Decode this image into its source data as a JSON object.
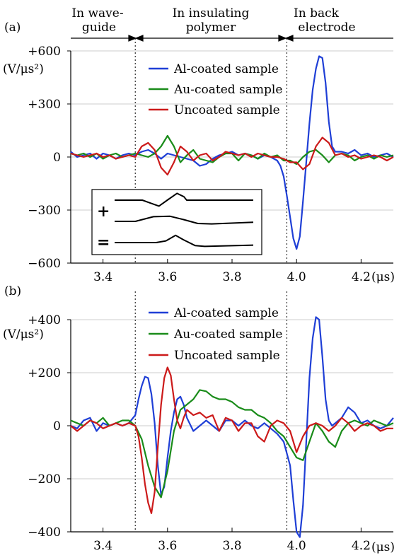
{
  "header": {
    "regions": [
      "In wave-",
      "guide",
      "In insulating",
      "polymer",
      "In back",
      "electrode"
    ]
  },
  "chart_data": [
    {
      "type": "line",
      "panel_label": "(a)",
      "ylabel_line1": "(V/μs²)",
      "xlim": [
        3.3,
        4.3
      ],
      "ylim": [
        -600,
        600
      ],
      "x_ticks": [
        3.4,
        3.6,
        3.8,
        4.0,
        4.2
      ],
      "x_tick_labels": [
        "3.4",
        "3.6",
        "3.8",
        "4.0",
        "4.2"
      ],
      "x_unit": "(μs)",
      "y_ticks": [
        600,
        300,
        0,
        -300,
        -600
      ],
      "y_tick_labels": [
        "+600",
        "+300",
        "0",
        "−300",
        "−600"
      ],
      "grid": true,
      "legend_position": "top-center",
      "markers": [
        3.5,
        3.97
      ],
      "series": [
        {
          "name": "Al-coated sample",
          "color": "#1f3fd6",
          "x": [
            3.3,
            3.32,
            3.34,
            3.36,
            3.38,
            3.4,
            3.42,
            3.44,
            3.46,
            3.48,
            3.5,
            3.52,
            3.54,
            3.56,
            3.58,
            3.6,
            3.62,
            3.64,
            3.66,
            3.68,
            3.7,
            3.72,
            3.74,
            3.76,
            3.78,
            3.8,
            3.82,
            3.84,
            3.86,
            3.88,
            3.9,
            3.92,
            3.94,
            3.95,
            3.96,
            3.97,
            3.98,
            3.99,
            4.0,
            4.01,
            4.02,
            4.03,
            4.04,
            4.05,
            4.06,
            4.07,
            4.08,
            4.09,
            4.1,
            4.11,
            4.12,
            4.14,
            4.16,
            4.18,
            4.2,
            4.22,
            4.24,
            4.26,
            4.28,
            4.3
          ],
          "y": [
            30,
            0,
            10,
            20,
            -10,
            20,
            10,
            -10,
            10,
            20,
            10,
            30,
            40,
            20,
            -10,
            20,
            10,
            0,
            -10,
            -20,
            -50,
            -40,
            -10,
            10,
            20,
            30,
            10,
            20,
            10,
            -10,
            10,
            0,
            -20,
            -50,
            -110,
            -220,
            -340,
            -460,
            -520,
            -450,
            -250,
            -30,
            190,
            380,
            500,
            570,
            560,
            420,
            200,
            60,
            30,
            30,
            20,
            40,
            10,
            20,
            0,
            10,
            20,
            0
          ]
        },
        {
          "name": "Au-coated sample",
          "color": "#1a8c1a",
          "x": [
            3.3,
            3.32,
            3.34,
            3.36,
            3.38,
            3.4,
            3.42,
            3.44,
            3.46,
            3.48,
            3.5,
            3.52,
            3.54,
            3.56,
            3.58,
            3.6,
            3.62,
            3.64,
            3.66,
            3.68,
            3.7,
            3.72,
            3.74,
            3.76,
            3.78,
            3.8,
            3.82,
            3.84,
            3.86,
            3.88,
            3.9,
            3.92,
            3.94,
            3.96,
            3.98,
            4.0,
            4.02,
            4.04,
            4.06,
            4.08,
            4.1,
            4.12,
            4.14,
            4.16,
            4.18,
            4.2,
            4.22,
            4.24,
            4.26,
            4.28,
            4.3
          ],
          "y": [
            20,
            10,
            20,
            0,
            20,
            -10,
            10,
            20,
            0,
            10,
            20,
            10,
            0,
            20,
            60,
            120,
            60,
            -30,
            10,
            40,
            -10,
            -20,
            -30,
            0,
            20,
            20,
            -20,
            20,
            10,
            -10,
            20,
            0,
            10,
            -20,
            -20,
            -40,
            0,
            30,
            40,
            10,
            -30,
            10,
            20,
            10,
            -20,
            0,
            10,
            -10,
            10,
            0,
            10
          ]
        },
        {
          "name": "Uncoated sample",
          "color": "#cc1a1a",
          "x": [
            3.3,
            3.32,
            3.34,
            3.36,
            3.38,
            3.4,
            3.42,
            3.44,
            3.46,
            3.48,
            3.5,
            3.52,
            3.54,
            3.56,
            3.58,
            3.6,
            3.62,
            3.64,
            3.66,
            3.68,
            3.7,
            3.72,
            3.74,
            3.76,
            3.78,
            3.8,
            3.82,
            3.84,
            3.86,
            3.88,
            3.9,
            3.92,
            3.94,
            3.96,
            3.98,
            4.0,
            4.02,
            4.04,
            4.06,
            4.08,
            4.1,
            4.12,
            4.14,
            4.16,
            4.18,
            4.2,
            4.22,
            4.24,
            4.26,
            4.28,
            4.3
          ],
          "y": [
            20,
            10,
            0,
            10,
            20,
            0,
            10,
            -10,
            0,
            10,
            0,
            60,
            80,
            40,
            -60,
            -100,
            -30,
            60,
            30,
            -20,
            10,
            20,
            -20,
            0,
            30,
            20,
            10,
            20,
            0,
            20,
            10,
            0,
            0,
            -10,
            -30,
            -30,
            -70,
            -40,
            60,
            110,
            80,
            10,
            20,
            0,
            10,
            -10,
            0,
            10,
            0,
            -20,
            0
          ]
        }
      ]
    },
    {
      "type": "line",
      "panel_label": "(b)",
      "ylabel_line1": "(V/μs²)",
      "xlim": [
        3.3,
        4.3
      ],
      "ylim": [
        -400,
        400
      ],
      "x_ticks": [
        3.4,
        3.6,
        3.8,
        4.0,
        4.2
      ],
      "x_tick_labels": [
        "3.4",
        "3.6",
        "3.8",
        "4.0",
        "4.2"
      ],
      "x_unit": "(μs)",
      "y_ticks": [
        400,
        200,
        0,
        -200,
        -400
      ],
      "y_tick_labels": [
        "+400",
        "+200",
        "0",
        "−200",
        "−400"
      ],
      "grid": true,
      "legend_position": "top-center",
      "markers": [
        3.5,
        3.97
      ],
      "series": [
        {
          "name": "Al-coated sample",
          "color": "#1f3fd6",
          "x": [
            3.3,
            3.32,
            3.34,
            3.36,
            3.38,
            3.4,
            3.42,
            3.44,
            3.46,
            3.48,
            3.5,
            3.51,
            3.52,
            3.53,
            3.54,
            3.55,
            3.56,
            3.57,
            3.58,
            3.59,
            3.6,
            3.61,
            3.62,
            3.63,
            3.64,
            3.65,
            3.66,
            3.68,
            3.7,
            3.72,
            3.74,
            3.76,
            3.78,
            3.8,
            3.82,
            3.84,
            3.86,
            3.88,
            3.9,
            3.92,
            3.94,
            3.96,
            3.98,
            3.99,
            4.0,
            4.01,
            4.02,
            4.03,
            4.04,
            4.05,
            4.06,
            4.07,
            4.08,
            4.09,
            4.1,
            4.11,
            4.12,
            4.14,
            4.16,
            4.18,
            4.2,
            4.22,
            4.24,
            4.26,
            4.28,
            4.3
          ],
          "y": [
            0,
            -10,
            20,
            30,
            -20,
            10,
            0,
            10,
            0,
            10,
            40,
            100,
            150,
            185,
            180,
            120,
            10,
            -150,
            -260,
            -230,
            -120,
            -20,
            50,
            100,
            110,
            80,
            30,
            -20,
            0,
            20,
            0,
            -20,
            20,
            20,
            0,
            20,
            0,
            -10,
            10,
            -10,
            -30,
            -60,
            -150,
            -280,
            -400,
            -420,
            -300,
            -60,
            180,
            330,
            410,
            400,
            260,
            100,
            20,
            0,
            10,
            30,
            70,
            50,
            10,
            20,
            0,
            -10,
            0,
            30
          ]
        },
        {
          "name": "Au-coated sample",
          "color": "#1a8c1a",
          "x": [
            3.3,
            3.32,
            3.34,
            3.36,
            3.38,
            3.4,
            3.42,
            3.44,
            3.46,
            3.48,
            3.5,
            3.52,
            3.54,
            3.56,
            3.58,
            3.6,
            3.62,
            3.64,
            3.66,
            3.68,
            3.7,
            3.72,
            3.74,
            3.76,
            3.78,
            3.8,
            3.82,
            3.84,
            3.86,
            3.88,
            3.9,
            3.92,
            3.94,
            3.96,
            3.98,
            4.0,
            4.02,
            4.04,
            4.06,
            4.08,
            4.1,
            4.12,
            4.14,
            4.16,
            4.18,
            4.2,
            4.22,
            4.24,
            4.26,
            4.28,
            4.3
          ],
          "y": [
            20,
            10,
            0,
            20,
            10,
            30,
            0,
            10,
            20,
            20,
            0,
            -50,
            -150,
            -230,
            -270,
            -170,
            -20,
            60,
            80,
            100,
            135,
            130,
            110,
            100,
            100,
            90,
            70,
            60,
            60,
            40,
            30,
            10,
            -20,
            -40,
            -80,
            -120,
            -130,
            -60,
            10,
            -20,
            -60,
            -80,
            -20,
            10,
            20,
            10,
            0,
            20,
            10,
            0,
            10
          ]
        },
        {
          "name": "Uncoated sample",
          "color": "#cc1a1a",
          "x": [
            3.3,
            3.32,
            3.34,
            3.36,
            3.38,
            3.4,
            3.42,
            3.44,
            3.46,
            3.48,
            3.5,
            3.51,
            3.52,
            3.53,
            3.54,
            3.55,
            3.56,
            3.57,
            3.58,
            3.59,
            3.6,
            3.61,
            3.62,
            3.63,
            3.64,
            3.65,
            3.66,
            3.68,
            3.7,
            3.72,
            3.74,
            3.76,
            3.78,
            3.8,
            3.82,
            3.84,
            3.86,
            3.88,
            3.9,
            3.92,
            3.94,
            3.96,
            3.98,
            4.0,
            4.02,
            4.04,
            4.06,
            4.08,
            4.1,
            4.12,
            4.14,
            4.16,
            4.18,
            4.2,
            4.22,
            4.24,
            4.26,
            4.28,
            4.3
          ],
          "y": [
            0,
            -20,
            0,
            20,
            10,
            -10,
            0,
            10,
            0,
            10,
            0,
            -40,
            -120,
            -220,
            -290,
            -330,
            -250,
            -80,
            80,
            180,
            220,
            190,
            100,
            20,
            -10,
            30,
            60,
            40,
            50,
            30,
            40,
            -20,
            30,
            20,
            -20,
            10,
            10,
            -40,
            -60,
            0,
            20,
            10,
            -20,
            -100,
            -40,
            0,
            10,
            0,
            -20,
            0,
            30,
            10,
            -20,
            0,
            10,
            0,
            -20,
            -10,
            -10
          ]
        }
      ]
    }
  ],
  "inset": {
    "symbols": [
      "+",
      "="
    ],
    "curves": [
      {
        "name": "waveguide-pulse",
        "x": [
          0,
          0.2,
          0.25,
          0.32,
          0.38,
          0.45,
          0.5,
          0.52,
          1
        ],
        "y": [
          0,
          0,
          -0.3,
          -0.7,
          0,
          0.8,
          0.4,
          0,
          0
        ]
      },
      {
        "name": "polymer-pulse",
        "x": [
          0,
          0.15,
          0.28,
          0.4,
          0.5,
          0.6,
          0.7,
          1
        ],
        "y": [
          0,
          0,
          0.55,
          0.6,
          0.2,
          -0.25,
          -0.3,
          -0.1
        ]
      },
      {
        "name": "sum-pulse",
        "x": [
          0,
          0.3,
          0.37,
          0.44,
          0.5,
          0.58,
          0.65,
          1
        ],
        "y": [
          0,
          0,
          0.2,
          0.85,
          0.3,
          -0.35,
          -0.45,
          -0.3
        ]
      }
    ]
  }
}
